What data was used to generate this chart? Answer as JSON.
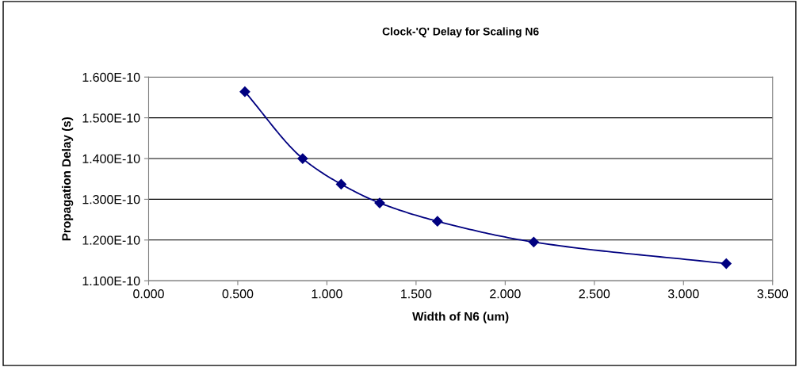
{
  "chart_data": {
    "type": "line",
    "title": "Clock-'Q' Delay for Scaling N6",
    "xlabel": "Width of N6 (um)",
    "ylabel": "Propagation Delay (s)",
    "x": [
      0.54,
      0.864,
      1.08,
      1.296,
      1.62,
      2.16,
      3.24
    ],
    "series": [
      {
        "color": "#000080",
        "values": [
          1.564e-10,
          1.4e-10,
          1.337e-10,
          1.291e-10,
          1.246e-10,
          1.195e-10,
          1.142e-10
        ]
      }
    ],
    "xlim": [
      0,
      3.5
    ],
    "xticks": [
      {
        "value": 0,
        "label": "0.000"
      },
      {
        "value": 0.5,
        "label": "0.500"
      },
      {
        "value": 1.0,
        "label": "1.000"
      },
      {
        "value": 1.5,
        "label": "1.500"
      },
      {
        "value": 2.0,
        "label": "2.000"
      },
      {
        "value": 2.5,
        "label": "2.500"
      },
      {
        "value": 3.0,
        "label": "3.000"
      },
      {
        "value": 3.5,
        "label": "3.500"
      }
    ],
    "ylim": [
      1.1e-10,
      1.6e-10
    ],
    "yticks": [
      {
        "value": 1.1e-10,
        "label": "1.100E-10"
      },
      {
        "value": 1.2e-10,
        "label": "1.200E-10"
      },
      {
        "value": 1.3e-10,
        "label": "1.300E-10"
      },
      {
        "value": 1.4e-10,
        "label": "1.400E-10"
      },
      {
        "value": 1.5e-10,
        "label": "1.500E-10"
      },
      {
        "value": 1.6e-10,
        "label": "1.600E-10"
      }
    ],
    "grid": "y",
    "marker": "diamond",
    "line_style": "solid",
    "legend": false
  }
}
